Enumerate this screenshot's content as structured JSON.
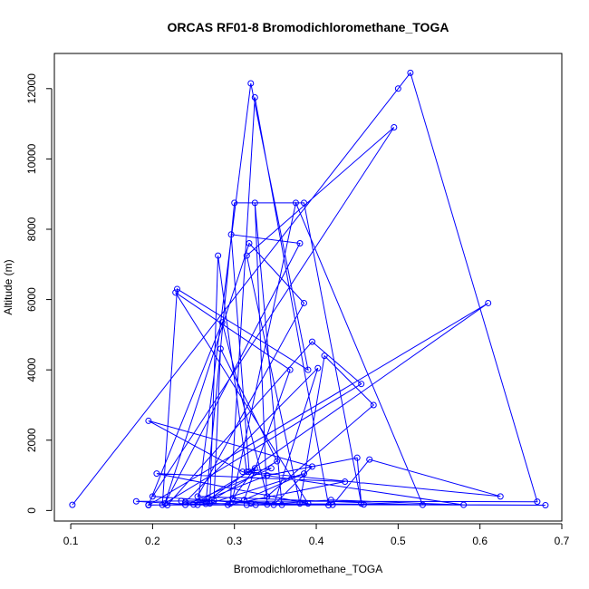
{
  "chart_data": {
    "type": "line",
    "title": "ORCAS RF01-8 Bromodichloromethane_TOGA",
    "xlabel": "Bromodichloromethane_TOGA",
    "ylabel": "Altitude (m)",
    "xlim": [
      0.08,
      0.7
    ],
    "ylim": [
      -300,
      13000
    ],
    "xticks": [
      0.1,
      0.2,
      0.3,
      0.4,
      0.5,
      0.6,
      0.7
    ],
    "xtick_labels": [
      "0.1",
      "0.2",
      "0.3",
      "0.4",
      "0.5",
      "0.6",
      "0.7"
    ],
    "yticks": [
      0,
      2000,
      4000,
      6000,
      8000,
      10000,
      12000
    ],
    "ytick_labels": [
      "0",
      "2000",
      "4000",
      "6000",
      "8000",
      "10000",
      "12000"
    ],
    "grid": false,
    "legend": "none",
    "color": "#0000ff",
    "marker": "open-circle",
    "series": [
      {
        "x": [
          0.102,
          0.5,
          0.515,
          0.67,
          0.235,
          0.18,
          0.255,
          0.32,
          0.39,
          0.23,
          0.212,
          0.455,
          0.395,
          0.218,
          0.265,
          0.61,
          0.195,
          0.295,
          0.325,
          0.415,
          0.275,
          0.283,
          0.352,
          0.265,
          0.3,
          0.385,
          0.455,
          0.45,
          0.34,
          0.25,
          0.325,
          0.292,
          0.435,
          0.205,
          0.39,
          0.228,
          0.368,
          0.312,
          0.385,
          0.27,
          0.28,
          0.315,
          0.345,
          0.24,
          0.458,
          0.358,
          0.325,
          0.34,
          0.68,
          0.32,
          0.2,
          0.495,
          0.315,
          0.38,
          0.41,
          0.47,
          0.34,
          0.285,
          0.195,
          0.42,
          0.465,
          0.625,
          0.318,
          0.296,
          0.38,
          0.215,
          0.318,
          0.385,
          0.255,
          0.53,
          0.375,
          0.298,
          0.326,
          0.418,
          0.58,
          0.31,
          0.195,
          0.395,
          0.348,
          0.402,
          0.24,
          0.315
        ],
        "y": [
          160,
          12000,
          12450,
          250,
          270,
          260,
          160,
          12150,
          4000,
          6300,
          160,
          3600,
          4800,
          150,
          250,
          5900,
          150,
          200,
          11750,
          150,
          280,
          4600,
          1400,
          190,
          8750,
          8750,
          200,
          1500,
          1000,
          170,
          1200,
          160,
          820,
          1050,
          200,
          6200,
          4000,
          300,
          1050,
          200,
          7250,
          1100,
          1200,
          160,
          170,
          160,
          8750,
          170,
          150,
          200,
          400,
          10900,
          7250,
          200,
          4400,
          3000,
          400,
          5350,
          160,
          160,
          1450,
          400,
          1100,
          7850,
          7600,
          200,
          7600,
          5900,
          400,
          160,
          8750,
          350,
          160,
          300,
          160,
          1100,
          2550,
          1250,
          160,
          4050,
          240,
          160
        ]
      }
    ]
  }
}
